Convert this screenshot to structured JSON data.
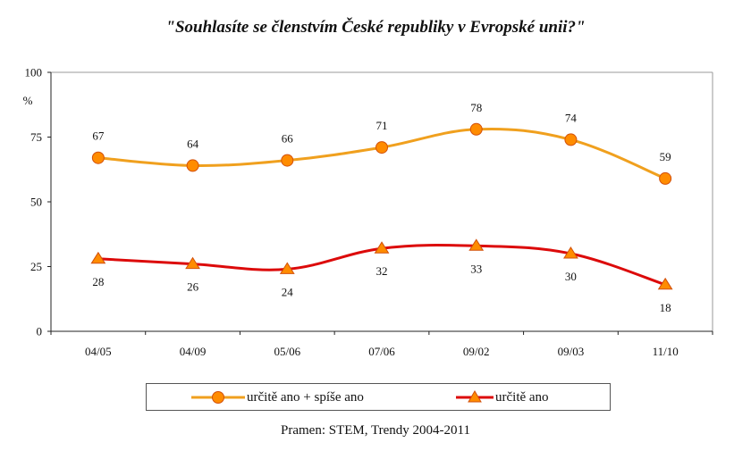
{
  "chart_data": {
    "type": "line",
    "title": "\"Souhlasíte se členstvím České republiky v Evropské unii?\"",
    "xlabel": "",
    "ylabel": "%",
    "categories": [
      "04/05",
      "04/09",
      "05/06",
      "07/06",
      "09/02",
      "09/03",
      "11/10"
    ],
    "ylim": [
      0,
      100
    ],
    "yticks": [
      0,
      25,
      50,
      75,
      100
    ],
    "grid": false,
    "legend_position": "bottom",
    "series": [
      {
        "name": "určitě ano + spíše ano",
        "marker": "circle",
        "color": "#f0a01e",
        "marker_fill": "#ff8c00",
        "marker_edge": "#d2500a",
        "values": [
          67,
          64,
          66,
          71,
          78,
          74,
          59
        ],
        "label_position": "above"
      },
      {
        "name": "určitě ano",
        "marker": "triangle",
        "color": "#dc0a0a",
        "marker_fill": "#ff8c00",
        "marker_edge": "#d2500a",
        "values": [
          28,
          26,
          24,
          32,
          33,
          30,
          18
        ],
        "label_position": "below"
      }
    ],
    "source": "Pramen: STEM, Trendy 2004-2011"
  }
}
